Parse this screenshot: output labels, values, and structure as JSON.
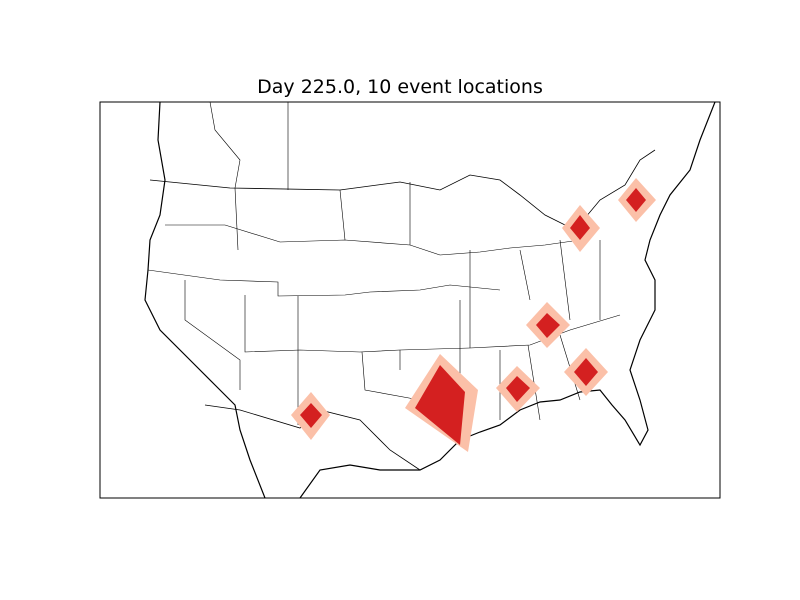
{
  "title": "Day 225.0, 10 event locations",
  "colors": {
    "event_core": "#d42020",
    "event_halo": "#fbc0a8",
    "land_lines": "#000000",
    "background": "#ffffff"
  },
  "map": {
    "region": "contiguous United States",
    "projection": "basemap",
    "features": [
      "coastlines",
      "country borders",
      "state borders"
    ]
  }
}
